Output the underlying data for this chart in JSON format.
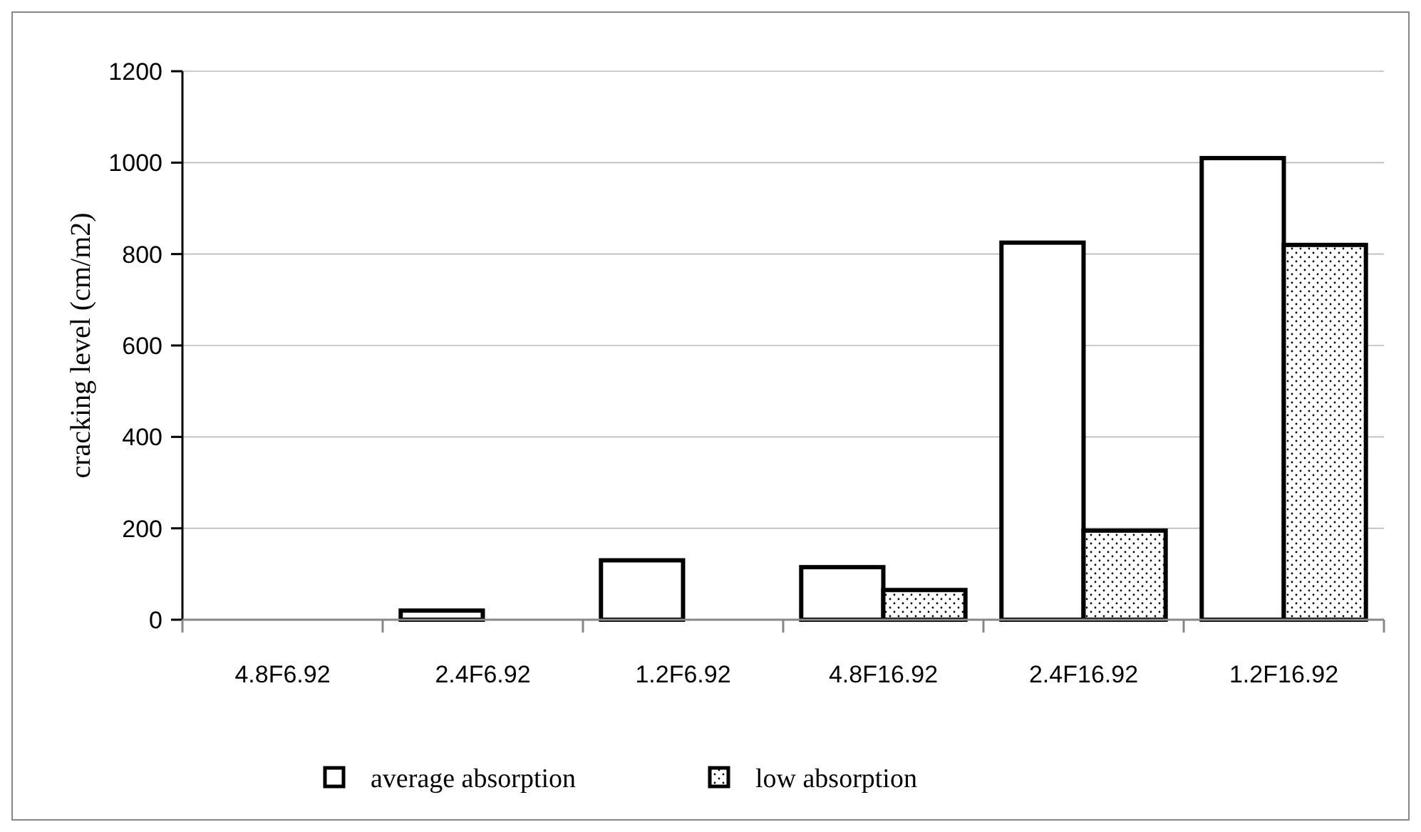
{
  "chart_data": {
    "type": "bar",
    "ylabel": "cracking level (cm/m2)",
    "categories": [
      "4.8F6.92",
      "2.4F6.92",
      "1.2F6.92",
      "4.8F16.92",
      "2.4F16.92",
      "1.2F16.92"
    ],
    "series": [
      {
        "name": "average absorption",
        "color": "#ffffff",
        "values": [
          0,
          20,
          130,
          115,
          825,
          1010
        ]
      },
      {
        "name": "low absorption",
        "color": "#000000",
        "values": [
          0,
          0,
          0,
          65,
          195,
          820
        ]
      }
    ],
    "ylim": [
      0,
      1200
    ],
    "yticks": [
      0,
      200,
      400,
      600,
      800,
      1000,
      1200
    ],
    "grid": "y",
    "legend": "bottom"
  }
}
